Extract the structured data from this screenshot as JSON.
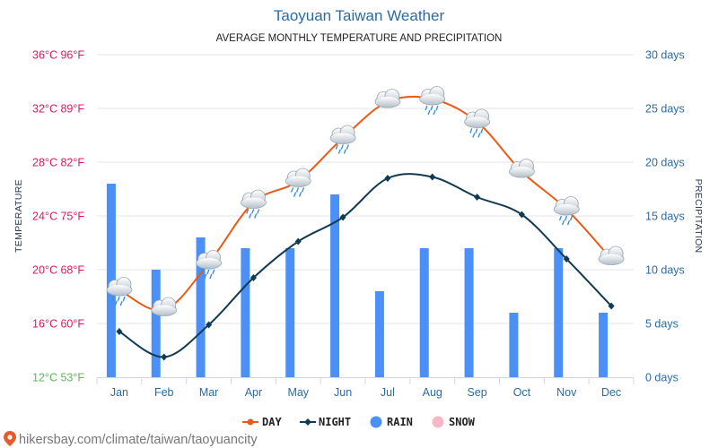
{
  "colors": {
    "day": "#ea5a14",
    "night": "#123a52",
    "rain": "#4a90f7",
    "snow": "#f7b7c9",
    "title": "#2b6aa5",
    "temp_hot": "#e0185d",
    "temp_cool": "#5cb85c"
  },
  "header": {
    "title": "Taoyuan Taiwan Weather",
    "subtitle": "AVERAGE MONTHLY TEMPERATURE AND PRECIPITATION"
  },
  "chart_data": {
    "type": "line+bar",
    "categories": [
      "Jan",
      "Feb",
      "Mar",
      "Apr",
      "May",
      "Jun",
      "Jul",
      "Aug",
      "Sep",
      "Oct",
      "Nov",
      "Dec"
    ],
    "series": [
      {
        "name": "DAY",
        "axis": "left",
        "unit": "°C",
        "values": [
          18.5,
          17.0,
          20.5,
          25.0,
          26.6,
          29.8,
          32.5,
          32.7,
          31.0,
          27.3,
          24.5,
          20.8
        ]
      },
      {
        "name": "NIGHT",
        "axis": "left",
        "unit": "°C",
        "values": [
          15.4,
          13.5,
          15.9,
          19.4,
          22.1,
          23.9,
          26.8,
          26.9,
          25.4,
          24.1,
          20.8,
          17.3
        ]
      },
      {
        "name": "RAIN",
        "axis": "right",
        "unit": "days",
        "values": [
          18,
          10,
          13,
          12,
          12,
          17,
          8,
          12,
          12,
          6,
          12,
          6
        ]
      },
      {
        "name": "SNOW",
        "axis": "right",
        "unit": "days",
        "values": [
          0,
          0,
          0,
          0,
          0,
          0,
          0,
          0,
          0,
          0,
          0,
          0
        ]
      }
    ],
    "weather_icons": [
      "rain-cloud",
      "sun-cloud",
      "rain-cloud",
      "rain-cloud",
      "rain-cloud",
      "sun-rain-cloud",
      "sun-cloud",
      "sun-rain-cloud",
      "sun-rain-cloud",
      "sun-cloud",
      "rain-cloud",
      "sun-cloud"
    ],
    "ylim_left": [
      12,
      36
    ],
    "ylim_right": [
      0,
      30
    ],
    "yticks_left": [
      "12°C 53°F",
      "16°C 60°F",
      "20°C 68°F",
      "24°C 75°F",
      "28°C 82°F",
      "32°C 89°F",
      "36°C 96°F"
    ],
    "yticks_right": [
      "0 days",
      "5 days",
      "10 days",
      "15 days",
      "20 days",
      "25 days",
      "30 days"
    ],
    "ylabel_left": "TEMPERATURE",
    "ylabel_right": "PRECIPITATION",
    "legend": [
      "DAY",
      "NIGHT",
      "RAIN",
      "SNOW"
    ],
    "grid": true
  },
  "footer": {
    "source": "hikersbay.com/climate/taiwan/taoyuancity",
    "pin_icon": "location-pin-icon"
  }
}
